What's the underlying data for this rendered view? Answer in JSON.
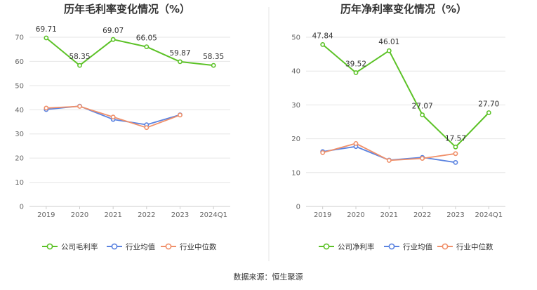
{
  "source": "数据来源：恒生聚源",
  "colors": {
    "company": "#5cc227",
    "industry_avg": "#5b83e0",
    "industry_median": "#f0906a",
    "grid": "#e6e6e6",
    "axis": "#cccccc",
    "divider": "#e5e5e5"
  },
  "chart_data": [
    {
      "type": "line",
      "title": "历年毛利率变化情况（%）",
      "categories": [
        "2019",
        "2020",
        "2021",
        "2022",
        "2023",
        "2024Q1"
      ],
      "ylim": [
        0,
        70
      ],
      "yticks": [
        "0",
        "10",
        "20",
        "30",
        "40",
        "50",
        "60",
        "70"
      ],
      "series": [
        {
          "name": "公司毛利率",
          "key": "company",
          "values": [
            69.71,
            58.35,
            69.07,
            66.05,
            59.87,
            58.35
          ],
          "labels": [
            "69.71",
            "58.35",
            "69.07",
            "66.05",
            "59.87",
            "58.35"
          ]
        },
        {
          "name": "行业均值",
          "key": "industry_avg",
          "values": [
            40.1,
            41.5,
            36.0,
            33.8,
            37.9,
            null
          ]
        },
        {
          "name": "行业中位数",
          "key": "industry_median",
          "values": [
            40.7,
            41.4,
            37.0,
            32.6,
            37.8,
            null
          ]
        }
      ]
    },
    {
      "type": "line",
      "title": "历年净利率变化情况（%）",
      "categories": [
        "2019",
        "2020",
        "2021",
        "2022",
        "2023",
        "2024Q1"
      ],
      "ylim": [
        0,
        50
      ],
      "yticks": [
        "0",
        "10",
        "20",
        "30",
        "40",
        "50"
      ],
      "series": [
        {
          "name": "公司净利率",
          "key": "company",
          "values": [
            47.84,
            39.52,
            46.01,
            27.07,
            17.57,
            27.7
          ],
          "labels": [
            "47.84",
            "39.52",
            "46.01",
            "27.07",
            "17.57",
            "27.70"
          ]
        },
        {
          "name": "行业均值",
          "key": "industry_avg",
          "values": [
            16.2,
            17.7,
            13.7,
            14.5,
            13.0,
            null
          ]
        },
        {
          "name": "行业中位数",
          "key": "industry_median",
          "values": [
            15.9,
            18.6,
            13.6,
            14.2,
            15.6,
            null
          ]
        }
      ]
    }
  ]
}
